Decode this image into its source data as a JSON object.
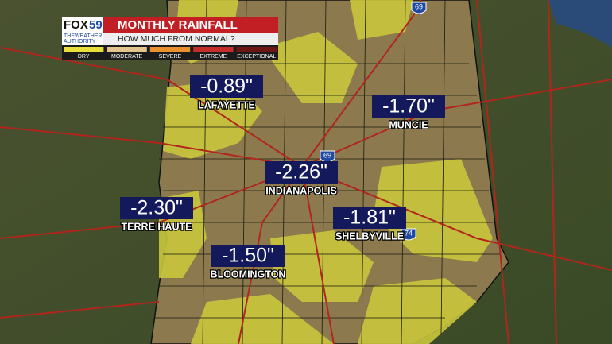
{
  "header": {
    "logo": "FOX",
    "channel": "59",
    "tagline": [
      "THEWEATHER",
      "AUTHORITY"
    ],
    "title": "MONTHLY RAINFALL",
    "subtitle": "HOW MUCH FROM NORMAL?"
  },
  "legend": [
    "DRY",
    "MODERATE",
    "SEVERE",
    "EXTREME",
    "EXCEPTIONAL"
  ],
  "cities": [
    {
      "name": "LAFAYETTE",
      "value": "-0.89\""
    },
    {
      "name": "MUNCIE",
      "value": "-1.70\""
    },
    {
      "name": "INDIANAPOLIS",
      "value": "-2.26\""
    },
    {
      "name": "TERRE HAUTE",
      "value": "-2.30\""
    },
    {
      "name": "SHELBYVILLE",
      "value": "-1.81\""
    },
    {
      "name": "BLOOMINGTON",
      "value": "-1.50\""
    }
  ],
  "highways": [
    "69",
    "69",
    "74"
  ]
}
